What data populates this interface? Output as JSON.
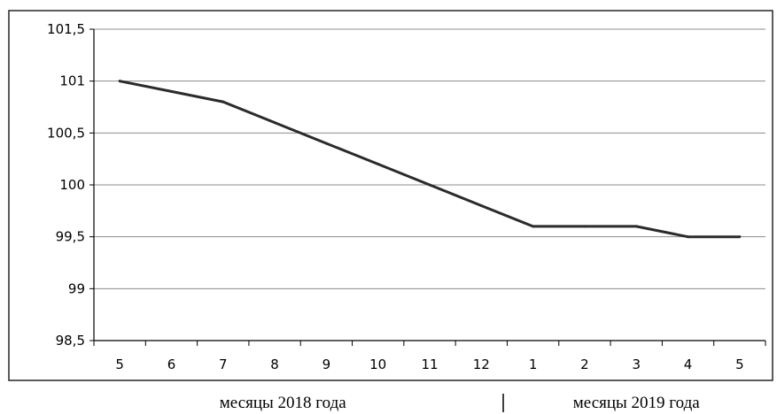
{
  "chart_data": {
    "type": "line",
    "title": "",
    "xlabel": "",
    "ylabel": "",
    "categories": [
      "5",
      "6",
      "7",
      "8",
      "9",
      "10",
      "11",
      "12",
      "1",
      "2",
      "3",
      "4",
      "5"
    ],
    "series": [
      {
        "values": [
          101.0,
          100.9,
          100.8,
          100.6,
          100.4,
          100.2,
          100.0,
          99.8,
          99.6,
          99.6,
          99.6,
          99.5,
          99.5
        ]
      }
    ],
    "ylim": [
      98.5,
      101.5
    ],
    "yticks": [
      98.5,
      99,
      99.5,
      100,
      100.5,
      101,
      101.5
    ],
    "ytick_labels": [
      "98,5",
      "99",
      "99,5",
      "100",
      "100,5",
      "101",
      "101,5"
    ],
    "grid": true,
    "line_color": "#2b2b2b",
    "grid_color": "#8c8c8c",
    "category_groups": [
      {
        "label": "месяцы 2018 года",
        "count": 8
      },
      {
        "label": "месяцы 2019 года",
        "count": 5
      }
    ]
  }
}
